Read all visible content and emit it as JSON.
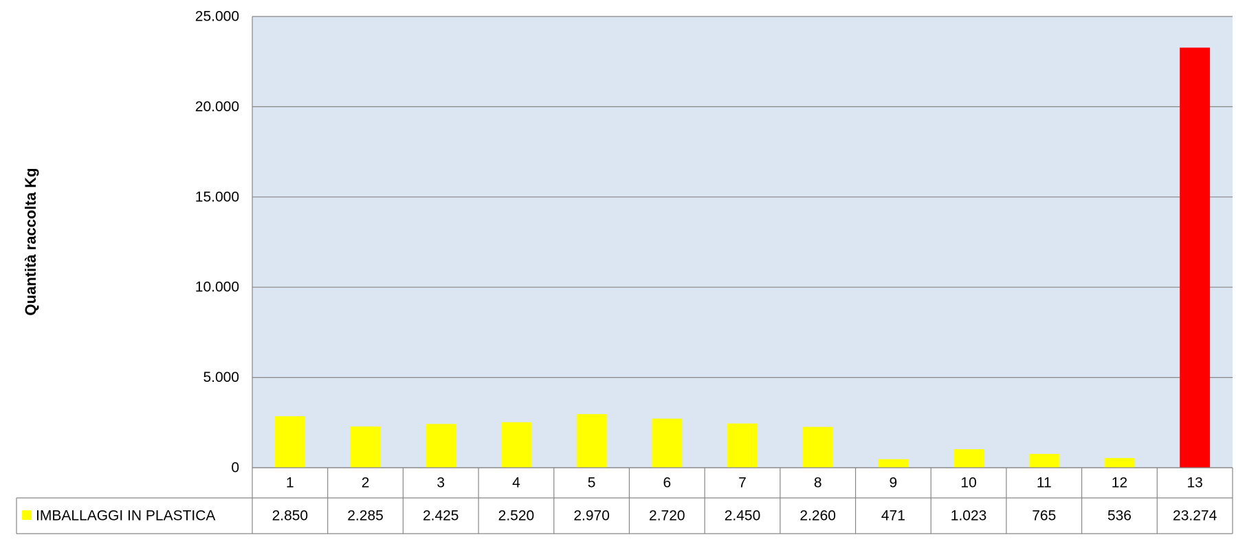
{
  "chart_data": {
    "type": "bar",
    "title": "",
    "xlabel": "",
    "ylabel": "Quantità raccolta Kg",
    "ylim": [
      0,
      25000
    ],
    "yticks": [
      0,
      5000,
      10000,
      15000,
      20000,
      25000
    ],
    "ytick_labels": [
      "0",
      "5.000",
      "10.000",
      "15.000",
      "20.000",
      "25.000"
    ],
    "grid": true,
    "legend_placement": "data-table",
    "categories": [
      "1",
      "2",
      "3",
      "4",
      "5",
      "6",
      "7",
      "8",
      "9",
      "10",
      "11",
      "12",
      "13"
    ],
    "series": [
      {
        "name": "IMBALLAGGI IN PLASTICA",
        "values": [
          2850,
          2285,
          2425,
          2520,
          2970,
          2720,
          2450,
          2260,
          471,
          1023,
          765,
          536,
          23274
        ],
        "value_labels": [
          "2.850",
          "2.285",
          "2.425",
          "2.520",
          "2.970",
          "2.720",
          "2.450",
          "2.260",
          "471",
          "1.023",
          "765",
          "536",
          "23.274"
        ],
        "color": "#FFFF00",
        "highlight_index": 12,
        "highlight_color": "#FF0000"
      }
    ],
    "plot_background": "#DCE6F2",
    "gridline_color": "#868686"
  }
}
